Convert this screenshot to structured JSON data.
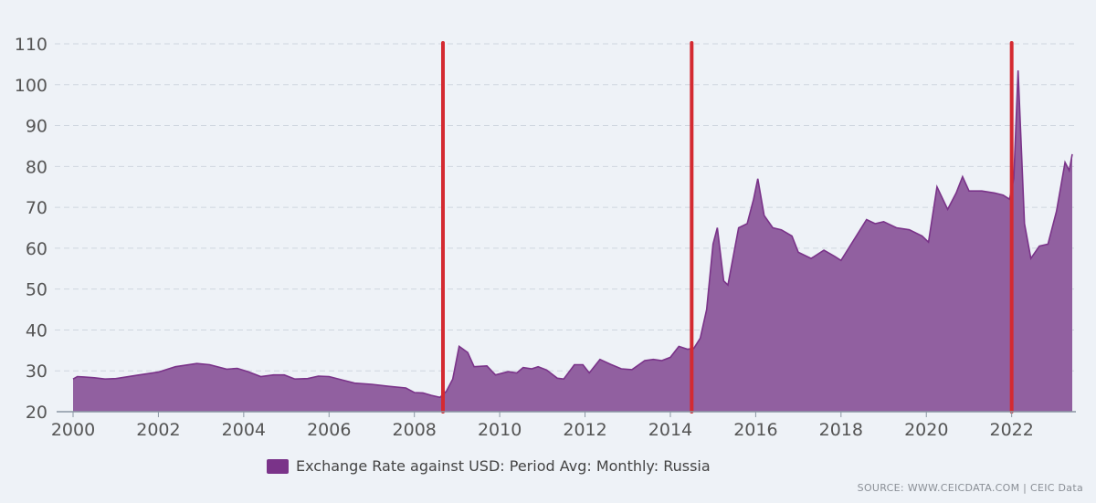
{
  "chart_data": {
    "type": "area",
    "title": "",
    "xlabel": "",
    "ylabel": "",
    "xlim": [
      2000.0,
      2023.42
    ],
    "ylim": [
      20,
      110
    ],
    "yticks": [
      20,
      30,
      40,
      50,
      60,
      70,
      80,
      90,
      100,
      110
    ],
    "xticks": [
      2000,
      2002,
      2004,
      2006,
      2008,
      2010,
      2012,
      2014,
      2016,
      2018,
      2020,
      2022
    ],
    "grid": true,
    "legend_position": "bottom-center",
    "series": [
      {
        "name": "Exchange Rate against USD: Period Avg: Monthly: Russia",
        "color": "#7a3389",
        "fill": "#9160a0",
        "points": [
          [
            2000.0,
            28.0
          ],
          [
            2000.1,
            28.6
          ],
          [
            2000.25,
            28.5
          ],
          [
            2000.5,
            28.3
          ],
          [
            2000.75,
            28.0
          ],
          [
            2001.0,
            28.1
          ],
          [
            2001.5,
            28.9
          ],
          [
            2002.0,
            29.7
          ],
          [
            2002.4,
            31.0
          ],
          [
            2002.9,
            31.8
          ],
          [
            2003.2,
            31.5
          ],
          [
            2003.6,
            30.4
          ],
          [
            2003.85,
            30.6
          ],
          [
            2004.1,
            29.8
          ],
          [
            2004.4,
            28.6
          ],
          [
            2004.7,
            29.0
          ],
          [
            2004.95,
            29.0
          ],
          [
            2005.2,
            28.0
          ],
          [
            2005.5,
            28.1
          ],
          [
            2005.75,
            28.7
          ],
          [
            2006.0,
            28.6
          ],
          [
            2006.3,
            27.8
          ],
          [
            2006.6,
            27.0
          ],
          [
            2007.0,
            26.7
          ],
          [
            2007.4,
            26.2
          ],
          [
            2007.8,
            25.8
          ],
          [
            2008.0,
            24.7
          ],
          [
            2008.2,
            24.6
          ],
          [
            2008.4,
            24.0
          ],
          [
            2008.6,
            23.5
          ],
          [
            2008.75,
            25.0
          ],
          [
            2008.9,
            28.0
          ],
          [
            2009.05,
            36.0
          ],
          [
            2009.25,
            34.5
          ],
          [
            2009.4,
            31.0
          ],
          [
            2009.7,
            31.2
          ],
          [
            2009.9,
            29.0
          ],
          [
            2010.2,
            29.8
          ],
          [
            2010.4,
            29.5
          ],
          [
            2010.55,
            30.8
          ],
          [
            2010.75,
            30.5
          ],
          [
            2010.9,
            31.0
          ],
          [
            2011.1,
            30.2
          ],
          [
            2011.35,
            28.2
          ],
          [
            2011.5,
            28.0
          ],
          [
            2011.75,
            31.5
          ],
          [
            2011.95,
            31.5
          ],
          [
            2012.1,
            29.5
          ],
          [
            2012.35,
            32.8
          ],
          [
            2012.6,
            31.6
          ],
          [
            2012.85,
            30.5
          ],
          [
            2013.1,
            30.3
          ],
          [
            2013.4,
            32.5
          ],
          [
            2013.6,
            32.8
          ],
          [
            2013.8,
            32.5
          ],
          [
            2014.0,
            33.3
          ],
          [
            2014.2,
            36.0
          ],
          [
            2014.4,
            35.3
          ],
          [
            2014.55,
            35.5
          ],
          [
            2014.7,
            38.0
          ],
          [
            2014.85,
            45.0
          ],
          [
            2015.0,
            61.0
          ],
          [
            2015.1,
            65.0
          ],
          [
            2015.25,
            52.0
          ],
          [
            2015.35,
            51.0
          ],
          [
            2015.6,
            65.0
          ],
          [
            2015.8,
            66.0
          ],
          [
            2015.95,
            72.0
          ],
          [
            2016.05,
            77.0
          ],
          [
            2016.2,
            68.0
          ],
          [
            2016.4,
            65.0
          ],
          [
            2016.6,
            64.5
          ],
          [
            2016.85,
            63.0
          ],
          [
            2017.0,
            59.0
          ],
          [
            2017.3,
            57.5
          ],
          [
            2017.6,
            59.5
          ],
          [
            2017.85,
            58.0
          ],
          [
            2018.0,
            57.0
          ],
          [
            2018.3,
            62.0
          ],
          [
            2018.6,
            67.0
          ],
          [
            2018.8,
            66.0
          ],
          [
            2019.0,
            66.5
          ],
          [
            2019.3,
            65.0
          ],
          [
            2019.6,
            64.5
          ],
          [
            2019.9,
            63.0
          ],
          [
            2020.05,
            61.5
          ],
          [
            2020.25,
            75.0
          ],
          [
            2020.5,
            69.5
          ],
          [
            2020.7,
            73.5
          ],
          [
            2020.85,
            77.5
          ],
          [
            2021.0,
            74.0
          ],
          [
            2021.3,
            74.0
          ],
          [
            2021.6,
            73.5
          ],
          [
            2021.8,
            73.0
          ],
          [
            2021.95,
            72.0
          ],
          [
            2022.05,
            77.0
          ],
          [
            2022.15,
            103.5
          ],
          [
            2022.3,
            66.0
          ],
          [
            2022.45,
            57.5
          ],
          [
            2022.65,
            60.5
          ],
          [
            2022.85,
            61.0
          ],
          [
            2023.05,
            69.0
          ],
          [
            2023.25,
            81.0
          ],
          [
            2023.35,
            79.0
          ],
          [
            2023.42,
            83.0
          ]
        ]
      }
    ],
    "annotations": [
      {
        "type": "vertical-line",
        "x": 2008.67,
        "color": "#d42a31"
      },
      {
        "type": "vertical-line",
        "x": 2014.5,
        "color": "#d42a31"
      },
      {
        "type": "vertical-line",
        "x": 2022.0,
        "color": "#d42a31"
      }
    ]
  },
  "legend": {
    "label": "Exchange Rate against USD: Period Avg: Monthly: Russia",
    "color": "#7a3389"
  },
  "source": "SOURCE: WWW.CEICDATA.COM | CEIC Data"
}
